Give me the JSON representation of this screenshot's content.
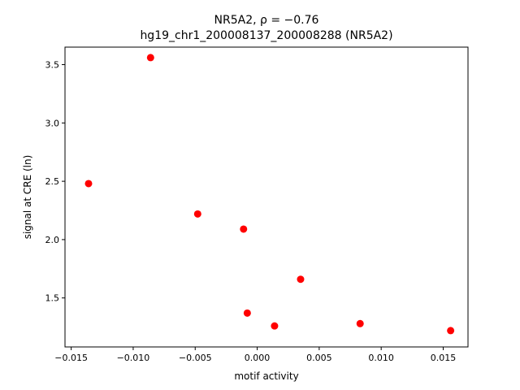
{
  "chart_data": {
    "type": "scatter",
    "title_line1": "NR5A2, ρ = −0.76",
    "title_line2": "hg19_chr1_200008137_200008288 (NR5A2)",
    "xlabel": "motif activity",
    "ylabel": "signal at CRE (ln)",
    "xlim": [
      -0.0155,
      0.017
    ],
    "ylim": [
      1.08,
      3.65
    ],
    "xticks": [
      -0.015,
      -0.01,
      -0.005,
      0.0,
      0.005,
      0.01,
      0.015
    ],
    "xtick_labels": [
      "−0.015",
      "−0.010",
      "−0.005",
      "0.000",
      "0.005",
      "0.010",
      "0.015"
    ],
    "yticks": [
      1.5,
      2.0,
      2.5,
      3.0,
      3.5
    ],
    "ytick_labels": [
      "1.5",
      "2.0",
      "2.5",
      "3.0",
      "3.5"
    ],
    "grid": false,
    "marker_color": "#ff0000",
    "points": [
      {
        "x": -0.0086,
        "y": 3.56
      },
      {
        "x": -0.0136,
        "y": 2.48
      },
      {
        "x": -0.0048,
        "y": 2.22
      },
      {
        "x": -0.0011,
        "y": 2.09
      },
      {
        "x": 0.0035,
        "y": 1.66
      },
      {
        "x": -0.0008,
        "y": 1.37
      },
      {
        "x": 0.0014,
        "y": 1.26
      },
      {
        "x": 0.0083,
        "y": 1.28
      },
      {
        "x": 0.0156,
        "y": 1.22
      }
    ]
  }
}
